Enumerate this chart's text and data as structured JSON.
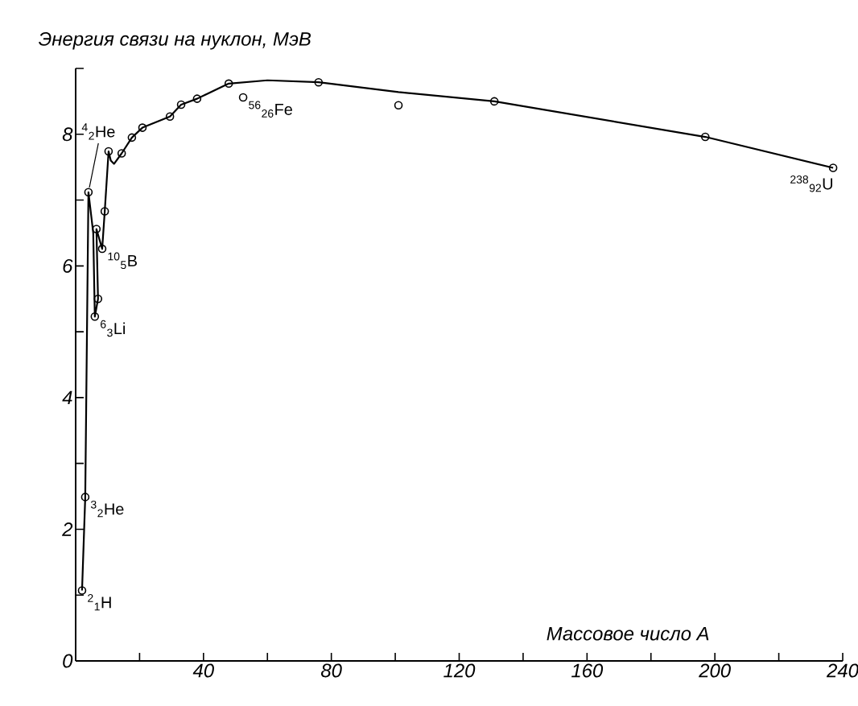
{
  "chart_data": {
    "type": "scatter",
    "ylabel": "Энергия связи на нуклон, МэВ",
    "xlabel": "Массовое число A",
    "xlim": [
      0,
      240
    ],
    "ylim": [
      0,
      9
    ],
    "xticks": [
      {
        "value": 20,
        "label": null
      },
      40,
      {
        "value": 60,
        "label": null
      },
      80,
      {
        "value": 100,
        "label": null
      },
      120,
      {
        "value": 140,
        "label": null
      },
      160,
      {
        "value": 180,
        "label": null
      },
      200,
      {
        "value": 220,
        "label": null
      },
      240
    ],
    "yticks": [
      0,
      {
        "value": 1,
        "label": null
      },
      2,
      {
        "value": 3,
        "label": null
      },
      4,
      {
        "value": 5,
        "label": null
      },
      6,
      {
        "value": 7,
        "label": null
      },
      8,
      {
        "value": 9,
        "label": null
      }
    ],
    "series": [
      {
        "type": "line",
        "color": "#000000",
        "marker": "none",
        "line_style": "solid",
        "x": [
          2,
          3,
          4,
          5.5,
          6,
          7,
          6.5,
          8.3,
          9.1,
          10.3,
          11,
          12,
          14.4,
          17.6,
          20.9,
          29.5,
          33,
          38,
          47.9,
          60,
          76,
          101,
          131,
          197,
          237
        ],
        "values": [
          1.07,
          2.49,
          7.12,
          6.5,
          5.23,
          5.5,
          6.56,
          6.26,
          6.83,
          7.74,
          7.6,
          7.55,
          7.71,
          7.95,
          8.1,
          8.27,
          8.45,
          8.54,
          8.77,
          8.82,
          8.79,
          8.64,
          8.5,
          7.96,
          7.49
        ]
      },
      {
        "color": "#000000",
        "marker": "circle",
        "x": [
          2,
          3,
          4,
          6,
          7,
          6.5,
          8.3,
          9.1,
          10.3,
          14.4,
          17.6,
          20.9,
          29.5,
          33,
          38,
          47.9,
          52.4,
          76,
          101,
          131,
          197,
          237
        ],
        "values": [
          1.07,
          2.49,
          7.12,
          5.23,
          5.5,
          6.56,
          6.26,
          6.83,
          7.74,
          7.71,
          7.95,
          8.1,
          8.27,
          8.45,
          8.54,
          8.77,
          8.56,
          8.79,
          8.44,
          8.5,
          7.96,
          7.49
        ]
      }
    ],
    "annotations": [
      {
        "text": "$^{2}$$_{1}$H",
        "x": 2,
        "y": 1.07
      },
      {
        "text": "$^{3}$$_{2}$He",
        "x": 3,
        "y": 2.49
      },
      {
        "text": "$^{4}$$_{2}$He",
        "x": 4,
        "y": 7.12
      },
      {
        "text": "$^{6}$$_{3}$Li",
        "x": 6,
        "y": 5.23
      },
      {
        "text": "$^{10}$$_{5}$B",
        "x": 8.3,
        "y": 6.26
      },
      {
        "text": "$^{56}$$_{26}$Fe",
        "x": 52.4,
        "y": 8.56
      },
      {
        "text": "$^{238}$$_{92}$U",
        "x": 237,
        "y": 7.49
      }
    ]
  }
}
